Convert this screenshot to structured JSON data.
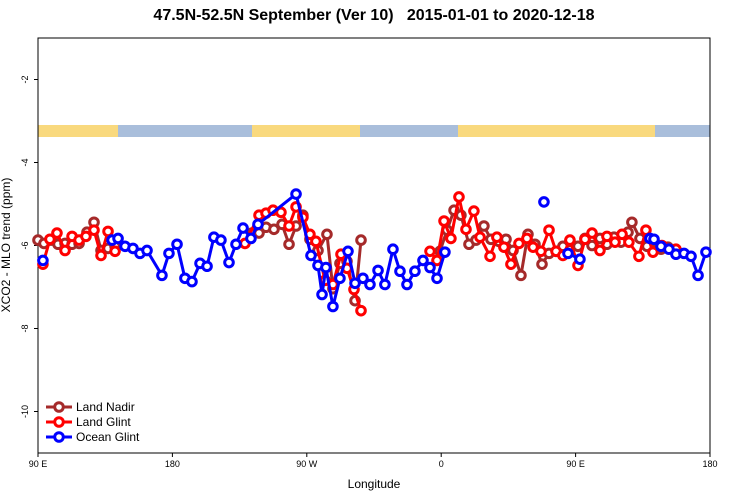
{
  "chart_data": {
    "type": "line",
    "title": "47.5N-52.5N September (Ver 10)   2015-01-01 to 2020-12-18",
    "x_label": "Longitude",
    "y_label": "XCO2 - MLO trend (ppm)",
    "xlim": [
      90,
      540
    ],
    "ylim": [
      -11,
      -1
    ],
    "xticks": [
      {
        "value": 90,
        "label": "90 E"
      },
      {
        "value": 180,
        "label": "180"
      },
      {
        "value": 270,
        "label": "90 W"
      },
      {
        "value": 360,
        "label": "0"
      },
      {
        "value": 450,
        "label": "90 E"
      },
      {
        "value": 540,
        "label": "180"
      }
    ],
    "yticks": [
      -2,
      -4,
      -6,
      -8,
      -10
    ],
    "legend": "lower-left",
    "series": [
      {
        "name": "Land Nadir",
        "color": "#a52a2a",
        "x": [
          90.0,
          94.0,
          98.7,
          103.4,
          108.1,
          112.8,
          117.5,
          122.8,
          127.5,
          132.2,
          136.9,
          141.6,
          190,
          233.3,
          238.0,
          242.7,
          248.0,
          253.4,
          258.1,
          262.8,
          267.4,
          272.1,
          277.5,
          283.5,
          287.5,
          292.2,
          296.9,
          302.3,
          306.3,
          330,
          359.2,
          363.9,
          368.6,
          373.2,
          378.6,
          383.3,
          388.6,
          393.3,
          398.7,
          403.4,
          408.1,
          413.4,
          418.1,
          422.8,
          427.5,
          432.2,
          436.9,
          441.5,
          446.2,
          451.6,
          456.3,
          461.0,
          466.3,
          471.0,
          475.7,
          480.4,
          485.1,
          487.7,
          493.1,
          497.8,
          502.5,
          507.2,
          511.8
        ],
        "values": [
          -5.87,
          -5.95,
          -5.87,
          -5.97,
          -5.95,
          -5.97,
          -5.95,
          -5.68,
          -5.44,
          -6.12,
          -6.07,
          -6.02,
          null,
          -5.7,
          -5.7,
          -5.56,
          -5.61,
          -5.49,
          -5.97,
          -5.53,
          -5.27,
          -5.85,
          -6.12,
          -5.73,
          -7.04,
          -6.43,
          -6.38,
          -7.33,
          -5.87,
          null,
          -6.14,
          -5.63,
          -5.15,
          -5.27,
          -5.97,
          -5.87,
          -5.53,
          -5.85,
          -5.9,
          -5.85,
          -6.12,
          -6.72,
          -5.73,
          -5.97,
          -6.45,
          -6.19,
          -6.14,
          -6.02,
          -5.9,
          -6.02,
          -5.83,
          -6.0,
          -5.83,
          -5.97,
          -5.8,
          -5.92,
          -5.68,
          -5.44,
          -5.83,
          -6.02,
          -5.9,
          -6.09,
          -6.04
        ]
      },
      {
        "name": "Land Glint",
        "color": "#ff0000",
        "x": [
          93.3,
          98.0,
          102.7,
          108.1,
          112.8,
          117.5,
          122.1,
          127.5,
          132.2,
          136.9,
          141.6,
          190,
          228.6,
          238.0,
          242.7,
          247.4,
          252.7,
          258.1,
          262.8,
          267.4,
          272.1,
          276.1,
          282.2,
          287.5,
          292.9,
          296.9,
          301.6,
          306.3,
          330,
          352.5,
          357.2,
          361.9,
          366.5,
          371.9,
          376.6,
          381.9,
          386.0,
          392.7,
          397.3,
          402.0,
          406.7,
          412.1,
          417.4,
          421.5,
          426.8,
          432.2,
          436.9,
          441.5,
          446.2,
          451.6,
          456.3,
          461.0,
          466.3,
          471.0,
          476.4,
          481.1,
          485.7,
          492.4,
          497.1,
          501.8,
          507.8,
          517.2
        ],
        "values": [
          -6.45,
          -5.85,
          -5.7,
          -6.12,
          -5.78,
          -5.87,
          -5.78,
          -5.63,
          -6.24,
          -5.66,
          -6.14,
          null,
          -5.95,
          -5.27,
          -5.22,
          -5.15,
          -5.2,
          -5.53,
          -5.07,
          -5.32,
          -5.73,
          -5.9,
          -6.84,
          -6.94,
          -6.21,
          -6.55,
          -7.06,
          -7.57,
          null,
          -6.14,
          -6.36,
          -5.41,
          -5.83,
          -4.83,
          -5.61,
          -5.17,
          -5.8,
          -6.26,
          -5.8,
          -6.04,
          -6.45,
          -5.95,
          -5.83,
          -6.04,
          -6.14,
          -5.63,
          -6.14,
          -6.24,
          -5.87,
          -6.48,
          -5.85,
          -5.7,
          -6.12,
          -5.78,
          -5.92,
          -5.73,
          -5.92,
          -6.26,
          -5.63,
          -6.16,
          -6.0,
          -6.09
        ]
      },
      {
        "name": "Ocean Glint",
        "color": "#0000ff",
        "x": [
          93.3,
          115,
          139.6,
          143.6,
          148.3,
          153.6,
          158.3,
          163.0,
          173.0,
          177.7,
          183.1,
          188.4,
          193.1,
          198.5,
          203.2,
          207.8,
          212.5,
          217.9,
          222.6,
          227.3,
          232.6,
          237.3,
          262.8,
          272.8,
          277.5,
          280.2,
          282.8,
          287.5,
          292.2,
          297.6,
          302.3,
          307.6,
          312.3,
          317.7,
          322.3,
          327.7,
          332.4,
          337.1,
          342.4,
          347.8,
          352.5,
          357.2,
          362.5,
          400,
          428.8,
          437,
          444.9,
          452.9,
          475,
          499.8,
          502.5,
          507.2,
          512.5,
          517.2,
          522.6,
          527.3,
          532.0,
          537.3
        ],
        "values": [
          -6.36,
          null,
          -5.87,
          -5.83,
          -6.02,
          -6.07,
          -6.19,
          -6.12,
          -6.72,
          -6.19,
          -5.97,
          -6.79,
          -6.87,
          -6.43,
          -6.5,
          -5.8,
          -5.87,
          -6.41,
          -5.97,
          -5.58,
          -5.83,
          -5.49,
          -4.76,
          -6.24,
          -6.48,
          -7.18,
          -6.53,
          -7.47,
          -6.79,
          -6.14,
          -6.91,
          -6.79,
          -6.94,
          -6.6,
          -6.94,
          -6.09,
          -6.62,
          -6.94,
          -6.62,
          -6.36,
          -6.53,
          -6.79,
          -6.16,
          null,
          -4.95,
          null,
          -6.19,
          -6.33,
          null,
          -5.83,
          -5.85,
          -6.02,
          -6.09,
          -6.21,
          -6.19,
          -6.26,
          -6.72,
          -6.16
        ]
      }
    ]
  }
}
